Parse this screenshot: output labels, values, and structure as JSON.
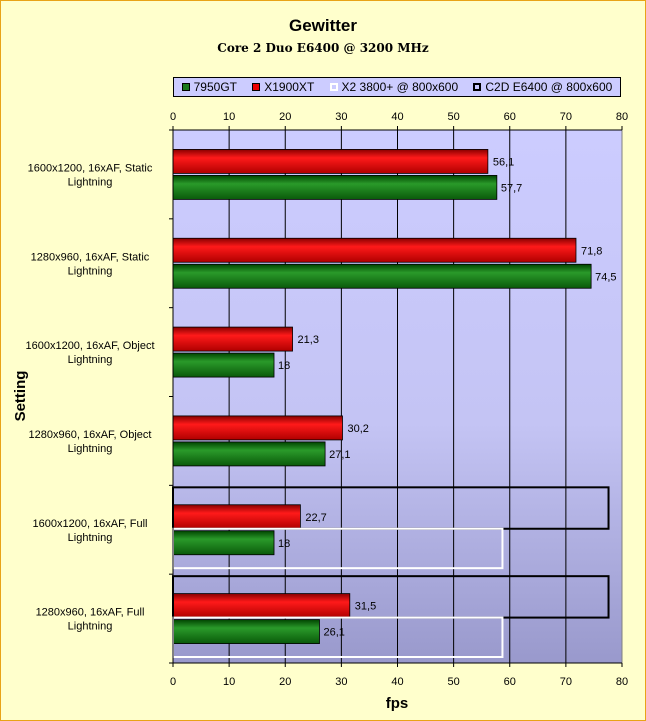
{
  "chart_data": {
    "type": "bar",
    "orientation": "horizontal",
    "title": "Gewitter",
    "subtitle": "Core 2 Duo E6400 @ 3200 MHz",
    "xlabel": "fps",
    "ylabel": "Setting",
    "xlim": [
      0,
      80
    ],
    "xticks": [
      "0",
      "10",
      "20",
      "30",
      "40",
      "50",
      "60",
      "70",
      "80"
    ],
    "grid": true,
    "legend_position": "top",
    "categories": [
      [
        "1600x1200, 16xAF, Static",
        "Lightning"
      ],
      [
        "1280x960, 16xAF, Static",
        "Lightning"
      ],
      [
        "1600x1200, 16xAF, Object",
        "Lightning"
      ],
      [
        "1280x960, 16xAF, Object",
        "Lightning"
      ],
      [
        "1600x1200, 16xAF, Full",
        "Lightning"
      ],
      [
        "1280x960, 16xAF, Full",
        "Lightning"
      ]
    ],
    "series": [
      {
        "name": "7950GT",
        "color": "#1a7a1a",
        "values": [
          57.7,
          74.5,
          18,
          27.1,
          18,
          26.1
        ],
        "labels": [
          "57,7",
          "74,5",
          "18",
          "27,1",
          "18",
          "26,1"
        ]
      },
      {
        "name": "X1900XT",
        "color": "#ee0000",
        "values": [
          56.1,
          71.8,
          21.3,
          30.2,
          22.7,
          31.5
        ],
        "labels": [
          "56,1",
          "71,8",
          "21,3",
          "30,2",
          "22,7",
          "31,5"
        ]
      },
      {
        "name": "X2 3800+ @ 800x600",
        "color": "#ffffff",
        "values": [
          null,
          null,
          null,
          null,
          58.7,
          58.7
        ],
        "labels": [
          "",
          "",
          "",
          "",
          "",
          ""
        ]
      },
      {
        "name": "C2D E6400 @ 800x600",
        "color": "#000000",
        "values": [
          null,
          null,
          null,
          null,
          77.6,
          77.6
        ],
        "labels": [
          "",
          "",
          "",
          "",
          "",
          ""
        ]
      }
    ]
  },
  "colors": {
    "page_bg": "#ffffcc",
    "frame": "#e8a317",
    "plot_top": "#ccccff",
    "plot_bottom": "#9999cc",
    "legend_bg": "#ccccff"
  }
}
